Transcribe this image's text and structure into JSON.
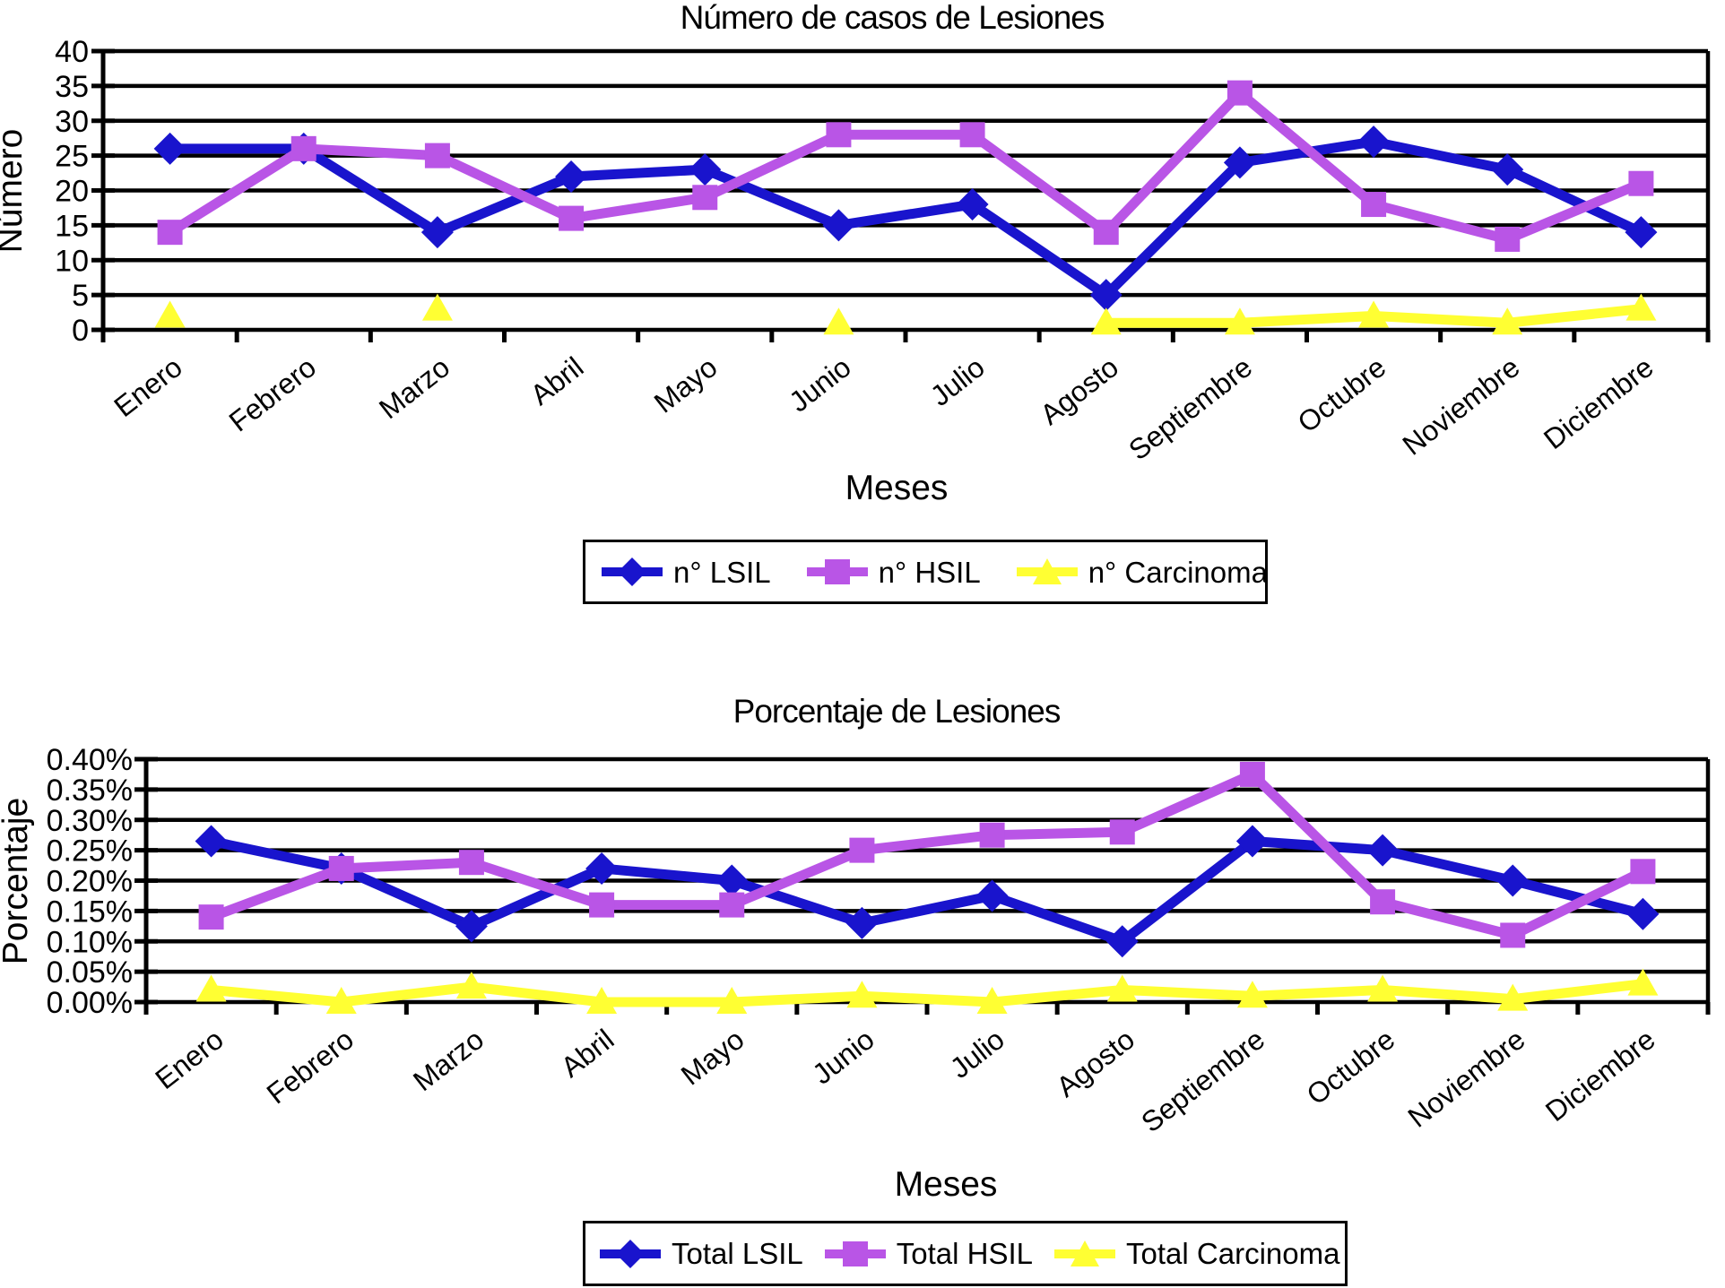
{
  "page": {
    "background": "#ffffff"
  },
  "chart_data": [
    {
      "type": "line",
      "title": "Número de casos de Lesiones",
      "xlabel": "Meses",
      "ylabel": "Número",
      "categories": [
        "Enero",
        "Febrero",
        "Marzo",
        "Abril",
        "Mayo",
        "Junio",
        "Julio",
        "Agosto",
        "Septiembre",
        "Octubre",
        "Noviembre",
        "Diciembre"
      ],
      "ylim": [
        0,
        40
      ],
      "ytick_step": 5,
      "y_tick_labels": [
        "0",
        "5",
        "10",
        "15",
        "20",
        "25",
        "30",
        "35",
        "40"
      ],
      "grid": "horizontal",
      "legend_position": "bottom",
      "series": [
        {
          "name": "n° LSIL",
          "color": "#1914cd",
          "marker": "diamond",
          "values": [
            26,
            26,
            14,
            22,
            23,
            15,
            18,
            5,
            24,
            27,
            23,
            14
          ]
        },
        {
          "name": "n° HSIL",
          "color": "#b955e6",
          "marker": "square",
          "values": [
            14,
            26,
            25,
            16,
            19,
            28,
            28,
            14,
            34,
            18,
            13,
            21
          ]
        },
        {
          "name": "n° Carcinoma",
          "color": "#ffff33",
          "marker": "triangle",
          "values": [
            2,
            null,
            3,
            null,
            null,
            1,
            null,
            1,
            1,
            2,
            1,
            3
          ]
        }
      ]
    },
    {
      "type": "line",
      "title": "Porcentaje de Lesiones",
      "xlabel": "Meses",
      "ylabel": "Porcentaje",
      "categories": [
        "Enero",
        "Febrero",
        "Marzo",
        "Abril",
        "Mayo",
        "Junio",
        "Julio",
        "Agosto",
        "Septiembre",
        "Octubre",
        "Noviembre",
        "Diciembre"
      ],
      "ylim": [
        0,
        0.4
      ],
      "ytick_step": 0.05,
      "y_tick_labels": [
        "0.00%",
        "0.05%",
        "0.10%",
        "0.15%",
        "0.20%",
        "0.25%",
        "0.30%",
        "0.35%",
        "0.40%"
      ],
      "grid": "horizontal",
      "legend_position": "bottom",
      "series": [
        {
          "name": "Total LSIL",
          "color": "#1914cd",
          "marker": "diamond",
          "values": [
            0.265,
            0.22,
            0.125,
            0.22,
            0.2,
            0.13,
            0.175,
            0.1,
            0.265,
            0.25,
            0.2,
            0.145
          ]
        },
        {
          "name": "Total HSIL",
          "color": "#b955e6",
          "marker": "square",
          "values": [
            0.14,
            0.22,
            0.23,
            0.16,
            0.16,
            0.25,
            0.275,
            0.28,
            0.375,
            0.165,
            0.11,
            0.215
          ]
        },
        {
          "name": "Total Carcinoma",
          "color": "#ffff33",
          "marker": "triangle",
          "values": [
            0.02,
            0.0,
            0.025,
            0.0,
            0.0,
            0.01,
            0.0,
            0.02,
            0.01,
            0.02,
            0.005,
            0.03
          ]
        }
      ]
    }
  ]
}
